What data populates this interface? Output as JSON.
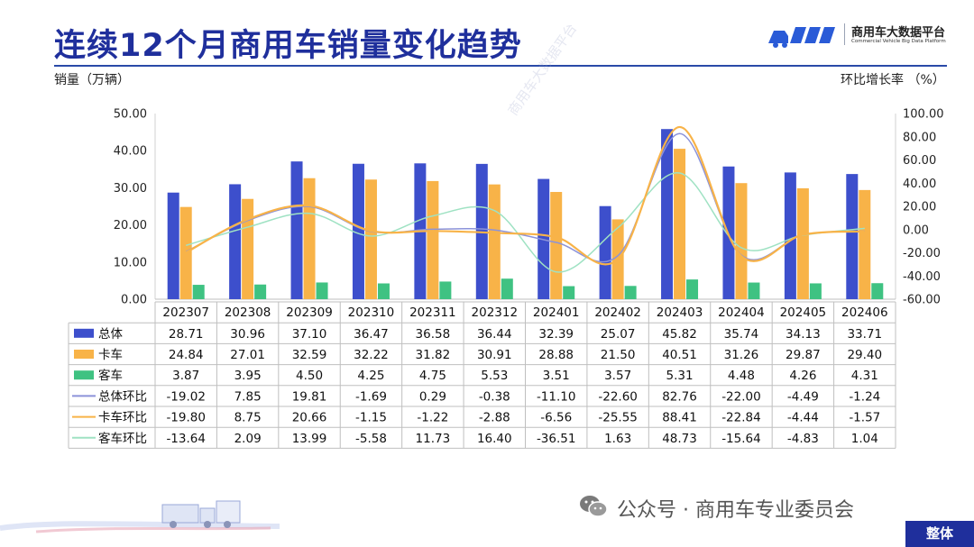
{
  "page": {
    "title": "连续12个月商用车销量变化趋势",
    "brand_name": "商用车大数据平台",
    "brand_sub": "Commercial Vehicle Big Data Platform",
    "footer_text": "公众号 · 商用车专业委员会",
    "footer_tag": "整体",
    "watermark": "商用车大数据平台"
  },
  "colors": {
    "title": "#1f2f9c",
    "total": "#3d4fcc",
    "truck": "#f8b348",
    "bus": "#3fc282",
    "total_mom": "#8c93d9",
    "truck_mom": "#f8b348",
    "bus_mom": "#9fe2c3"
  },
  "chart_data": {
    "type": "bar",
    "ylabel": "销量（万辆）",
    "y2label": "环比增长率 （%）",
    "ylim": [
      0,
      50
    ],
    "y2lim": [
      -60,
      100
    ],
    "y_ticks": [
      "50.00",
      "40.00",
      "30.00",
      "20.00",
      "10.00",
      "0.00"
    ],
    "y2_ticks": [
      "100.00",
      "80.00",
      "60.00",
      "40.00",
      "20.00",
      "0.00",
      "-20.00",
      "-40.00",
      "-60.00"
    ],
    "categories": [
      "202307",
      "202308",
      "202309",
      "202310",
      "202311",
      "202312",
      "202401",
      "202402",
      "202403",
      "202404",
      "202405",
      "202406"
    ],
    "series": [
      {
        "name": "总体",
        "type": "bar",
        "axis": "left",
        "values": [
          "28.71",
          "30.96",
          "37.10",
          "36.47",
          "36.58",
          "36.44",
          "32.39",
          "25.07",
          "45.82",
          "35.74",
          "34.13",
          "33.71"
        ]
      },
      {
        "name": "卡车",
        "type": "bar",
        "axis": "left",
        "values": [
          "24.84",
          "27.01",
          "32.59",
          "32.22",
          "31.82",
          "30.91",
          "28.88",
          "21.50",
          "40.51",
          "31.26",
          "29.87",
          "29.40"
        ]
      },
      {
        "name": "客车",
        "type": "bar",
        "axis": "left",
        "values": [
          "3.87",
          "3.95",
          "4.50",
          "4.25",
          "4.75",
          "5.53",
          "3.51",
          "3.57",
          "5.31",
          "4.48",
          "4.26",
          "4.31"
        ]
      },
      {
        "name": "总体环比",
        "type": "line",
        "axis": "right",
        "values": [
          "-19.02",
          "7.85",
          "19.81",
          "-1.69",
          "0.29",
          "-0.38",
          "-11.10",
          "-22.60",
          "82.76",
          "-22.00",
          "-4.49",
          "-1.24"
        ]
      },
      {
        "name": "卡车环比",
        "type": "line",
        "axis": "right",
        "values": [
          "-19.80",
          "8.75",
          "20.66",
          "-1.15",
          "-1.22",
          "-2.88",
          "-6.56",
          "-25.55",
          "88.41",
          "-22.84",
          "-4.44",
          "-1.57"
        ]
      },
      {
        "name": "客车环比",
        "type": "line",
        "axis": "right",
        "values": [
          "-13.64",
          "2.09",
          "13.99",
          "-5.58",
          "11.73",
          "16.40",
          "-36.51",
          "1.63",
          "48.73",
          "-15.64",
          "-4.83",
          "1.04"
        ]
      }
    ]
  }
}
